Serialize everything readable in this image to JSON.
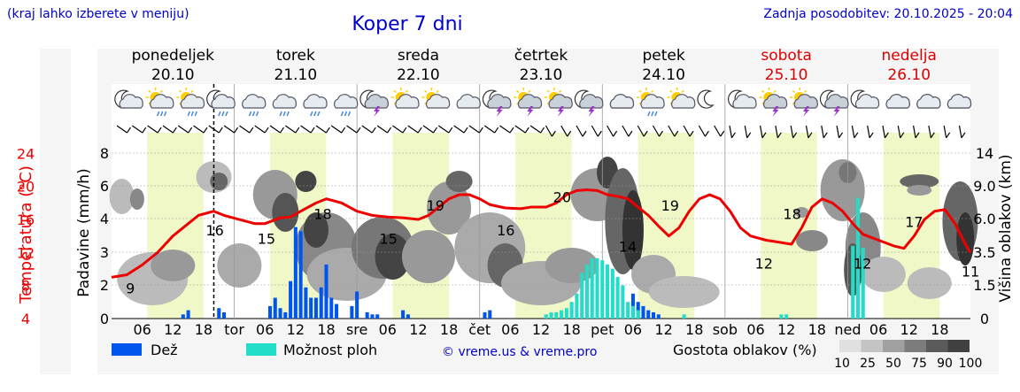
{
  "header": {
    "left_note": "(kraj lahko izberete v meniju)",
    "title": "Koper 7 dni",
    "updated": "Zadnja posodobitev: 20.10.2025 - 20:04"
  },
  "days": [
    {
      "name": "ponedeljek",
      "date": "20.10",
      "weekend": false,
      "abbr": ""
    },
    {
      "name": "torek",
      "date": "21.10",
      "weekend": false,
      "abbr": "tor"
    },
    {
      "name": "sreda",
      "date": "22.10",
      "weekend": false,
      "abbr": "sre"
    },
    {
      "name": "četrtek",
      "date": "23.10",
      "weekend": false,
      "abbr": "čet"
    },
    {
      "name": "petek",
      "date": "24.10",
      "weekend": false,
      "abbr": "pet"
    },
    {
      "name": "sobota",
      "date": "25.10",
      "weekend": true,
      "abbr": "sob"
    },
    {
      "name": "nedelja",
      "date": "26.10",
      "weekend": true,
      "abbr": "ned"
    }
  ],
  "icons": [
    "moon-cloud",
    "sun-cloud-rain",
    "sun-cloud-rain",
    "moon-rain",
    "cloud-rain",
    "cloud-rain",
    "cloud-rain",
    "cloud-rain",
    "moon-storm",
    "sun-cloud",
    "sun-cloud",
    "cloud-moon",
    "moon-storm",
    "sun-storm",
    "sun-storm",
    "moon-storm",
    "cloud",
    "sun-cloud-rain",
    "sun-cloud",
    "moon",
    "moon-cloud",
    "sun-storm",
    "sun-storm",
    "moon-storm",
    "moon-cloud",
    "cloud",
    "cloud",
    "cloud"
  ],
  "chart_data": {
    "type": "line",
    "x_unit": "hour since 20.10 00:00",
    "x_range": [
      0,
      168
    ],
    "hour_ticks": [
      "06",
      "12",
      "18"
    ],
    "temperature": {
      "label": "Temperatura (°C)",
      "ticks": [
        4,
        8,
        12,
        16,
        20,
        24
      ],
      "color": "#ee0000",
      "points": [
        [
          0,
          9
        ],
        [
          3,
          9.3
        ],
        [
          6,
          10.5
        ],
        [
          9,
          12
        ],
        [
          12,
          14
        ],
        [
          15,
          15.5
        ],
        [
          17,
          16.5
        ],
        [
          20,
          17
        ],
        [
          22,
          16.5
        ],
        [
          25,
          16
        ],
        [
          28,
          15.5
        ],
        [
          30,
          15.5
        ],
        [
          33,
          16.2
        ],
        [
          35,
          16.3
        ],
        [
          37,
          17
        ],
        [
          40,
          18
        ],
        [
          42,
          18.5
        ],
        [
          45,
          18
        ],
        [
          48,
          17
        ],
        [
          51,
          16.5
        ],
        [
          54,
          16.3
        ],
        [
          57,
          16.2
        ],
        [
          60,
          16
        ],
        [
          62,
          16.5
        ],
        [
          64,
          17.5
        ],
        [
          66,
          18.5
        ],
        [
          68,
          19
        ],
        [
          70,
          19
        ],
        [
          72,
          18.5
        ],
        [
          74,
          17.8
        ],
        [
          77,
          17.4
        ],
        [
          80,
          17.3
        ],
        [
          82,
          17.5
        ],
        [
          85,
          17.5
        ],
        [
          87,
          18
        ],
        [
          89,
          19
        ],
        [
          91,
          19.5
        ],
        [
          93,
          19.6
        ],
        [
          95,
          19.5
        ],
        [
          97,
          19
        ],
        [
          99,
          18.8
        ],
        [
          101,
          18.5
        ],
        [
          103,
          17.5
        ],
        [
          105,
          16.5
        ],
        [
          107,
          15.2
        ],
        [
          109,
          14
        ],
        [
          111,
          15
        ],
        [
          113,
          17
        ],
        [
          115,
          18.5
        ],
        [
          117,
          19
        ],
        [
          119,
          18.5
        ],
        [
          121,
          17
        ],
        [
          123,
          15
        ],
        [
          125,
          14
        ],
        [
          128,
          13.5
        ],
        [
          131,
          13.2
        ],
        [
          133,
          13
        ],
        [
          135,
          15
        ],
        [
          137,
          17.5
        ],
        [
          139,
          18.5
        ],
        [
          141,
          18
        ],
        [
          143,
          17
        ],
        [
          145,
          15.5
        ],
        [
          147,
          14.2
        ],
        [
          150,
          13.5
        ],
        [
          153,
          12.8
        ],
        [
          155,
          12.5
        ],
        [
          157,
          14
        ],
        [
          159,
          16
        ],
        [
          161,
          17
        ],
        [
          163,
          17.2
        ],
        [
          165,
          15.5
        ],
        [
          167,
          13
        ],
        [
          168,
          12
        ]
      ],
      "labels": [
        [
          4,
          9
        ],
        [
          22,
          16
        ],
        [
          33,
          15
        ],
        [
          45,
          18
        ],
        [
          59,
          15
        ],
        [
          69,
          19
        ],
        [
          84,
          16
        ],
        [
          96,
          20
        ],
        [
          110,
          14
        ],
        [
          119,
          19
        ],
        [
          139,
          12
        ],
        [
          145,
          18
        ],
        [
          160,
          12
        ],
        [
          171,
          17
        ],
        [
          183,
          11
        ]
      ]
    },
    "precipitation": {
      "label": "Padavine (mm/h)",
      "ticks": [
        0,
        2,
        3,
        4,
        6,
        8
      ],
      "series": [
        {
          "name": "Dež",
          "color": "#0055ee",
          "bars": [
            [
              14,
              0.2
            ],
            [
              15,
              0.4
            ],
            [
              21,
              0.5
            ],
            [
              22,
              0.3
            ],
            [
              31,
              0.6
            ],
            [
              32,
              1
            ],
            [
              33,
              0.5
            ],
            [
              34,
              0.3
            ],
            [
              35,
              1.8
            ],
            [
              36,
              4.4
            ],
            [
              37,
              4.2
            ],
            [
              38,
              1.5
            ],
            [
              39,
              1
            ],
            [
              40,
              1
            ],
            [
              41,
              1.5
            ],
            [
              42,
              2.6
            ],
            [
              43,
              1
            ],
            [
              44,
              0.7
            ],
            [
              47,
              0.6
            ],
            [
              48,
              1.3
            ],
            [
              50,
              0.3
            ],
            [
              51,
              0.2
            ],
            [
              52,
              0.2
            ],
            [
              57,
              0.4
            ],
            [
              58,
              0.2
            ],
            [
              73,
              0.3
            ],
            [
              74,
              0.4
            ],
            [
              102,
              1.2
            ],
            [
              103,
              0.8
            ],
            [
              104,
              0.6
            ],
            [
              105,
              0.4
            ],
            [
              106,
              0.3
            ],
            [
              107,
              0.2
            ]
          ]
        },
        {
          "name": "Možnost ploh",
          "color": "#22ddc8",
          "bars": [
            [
              85,
              0.2
            ],
            [
              86,
              0.3
            ],
            [
              87,
              0.3
            ],
            [
              88,
              0.4
            ],
            [
              89,
              0.5
            ],
            [
              90,
              0.8
            ],
            [
              91,
              1.2
            ],
            [
              92,
              2.2
            ],
            [
              93,
              2.6
            ],
            [
              94,
              2.9
            ],
            [
              95,
              2.9
            ],
            [
              96,
              2.8
            ],
            [
              97,
              2.6
            ],
            [
              98,
              2.4
            ],
            [
              99,
              2
            ],
            [
              100,
              1.6
            ],
            [
              101,
              0.8
            ],
            [
              102,
              0.6
            ],
            [
              103,
              0.4
            ],
            [
              112,
              0.2
            ],
            [
              131,
              0.2
            ],
            [
              132,
              0.2
            ],
            [
              145,
              3.5
            ],
            [
              146,
              5.8
            ],
            [
              147,
              3.4
            ]
          ]
        }
      ]
    },
    "cloud_height": {
      "label": "Višina oblakov (km)",
      "ticks": [
        0,
        1.5,
        3.5,
        6.0,
        9.0,
        14
      ],
      "legend_label": "Gostota oblakov (%)",
      "legend_values": [
        "10",
        "25",
        "50",
        "75",
        "90",
        "100"
      ]
    },
    "copyright": "© vreme.us & vreme.pro"
  }
}
